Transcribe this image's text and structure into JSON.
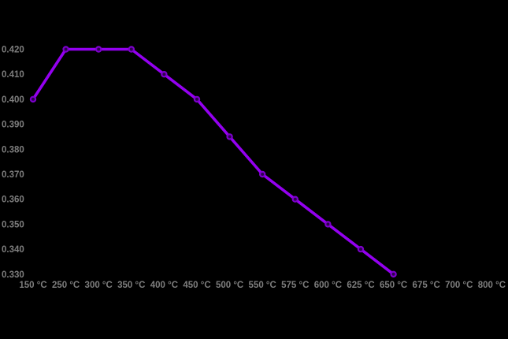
{
  "chart": {
    "background_color": "#000000",
    "line_color": "#9400F0",
    "marker_ring_color": "#7D00CC",
    "marker_fill_color": "#2E0050",
    "label_color": "#7E7E7E"
  },
  "chart_data": {
    "type": "line",
    "title": "",
    "xlabel": "",
    "ylabel": "",
    "categories": [
      "150 °C",
      "250 °C",
      "300 °C",
      "350 °C",
      "400 °C",
      "450 °C",
      "500 °C",
      "550 °C",
      "575 °C",
      "600 °C",
      "625 °C",
      "650 °C",
      "675 °C",
      "700 °C",
      "800 °C"
    ],
    "series": [
      {
        "name": "value-vs-temperature",
        "values": [
          0.4,
          0.42,
          0.42,
          0.42,
          0.41,
          0.4,
          0.385,
          0.37,
          0.36,
          0.35,
          0.34,
          0.33,
          null,
          null,
          null
        ]
      }
    ],
    "y_ticks": [
      "0.420",
      "0.410",
      "0.400",
      "0.390",
      "0.380",
      "0.370",
      "0.360",
      "0.350",
      "0.340",
      "0.330"
    ],
    "ylim": [
      0.33,
      0.42
    ],
    "y_tick_step": 0.01,
    "grid": false,
    "legend": false
  }
}
